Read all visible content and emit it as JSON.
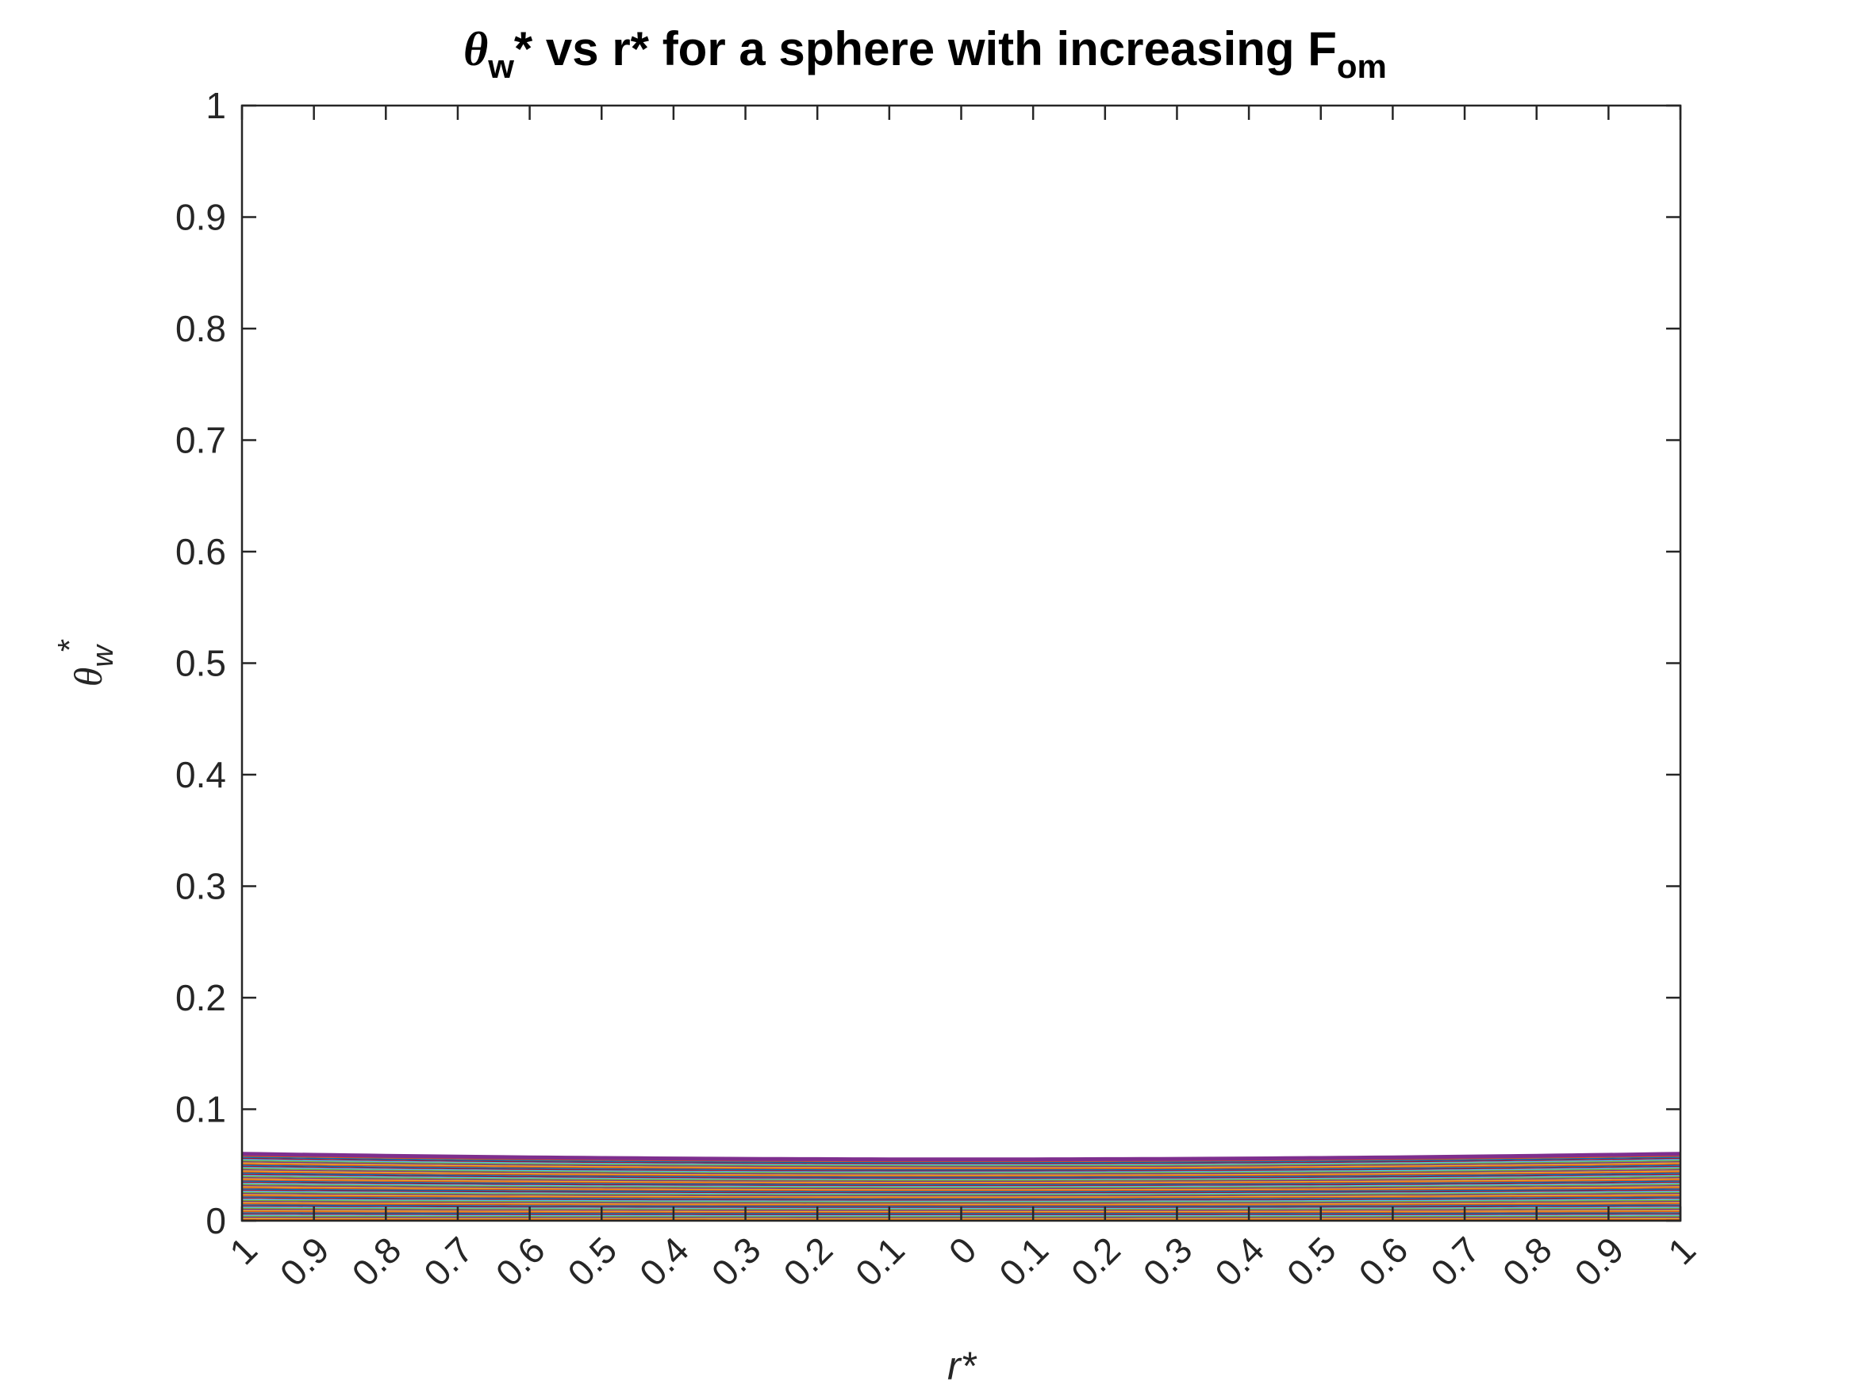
{
  "chart_data": {
    "type": "line",
    "title": {
      "theta": "θ",
      "sub_w": "w",
      "text_mid": "* vs r* for a sphere with increasing F",
      "sub_om": "om"
    },
    "ylabel": {
      "theta": "θ",
      "sub": "w",
      "sup": "*"
    },
    "xlabel": "r*",
    "x_tick_labels": [
      "1",
      "0.9",
      "0.8",
      "0.7",
      "0.6",
      "0.5",
      "0.4",
      "0.3",
      "0.2",
      "0.1",
      "0",
      "0.1",
      "0.2",
      "0.3",
      "0.4",
      "0.5",
      "0.6",
      "0.7",
      "0.8",
      "0.9",
      "1"
    ],
    "y_tick_labels": [
      "0",
      "0.1",
      "0.2",
      "0.3",
      "0.4",
      "0.5",
      "0.6",
      "0.7",
      "0.8",
      "0.9",
      "1"
    ],
    "xlim": [
      -1,
      1
    ],
    "ylim": [
      0,
      1
    ],
    "x": [
      -1,
      -0.9,
      -0.8,
      -0.7,
      -0.6,
      -0.5,
      -0.4,
      -0.3,
      -0.2,
      -0.1,
      0,
      0.1,
      0.2,
      0.3,
      0.4,
      0.5,
      0.6,
      0.7,
      0.8,
      0.9,
      1
    ],
    "series_envelope": {
      "count": 60,
      "bottom_center": 0.0,
      "bottom_edge": 0.0,
      "top_center": 0.055,
      "top_edge": 0.06
    },
    "colors": [
      "#0072BD",
      "#D95319",
      "#EDB120",
      "#7E2F8E",
      "#77AC30",
      "#4DBEEE",
      "#A2142F"
    ],
    "grid": false,
    "legend": "none"
  }
}
